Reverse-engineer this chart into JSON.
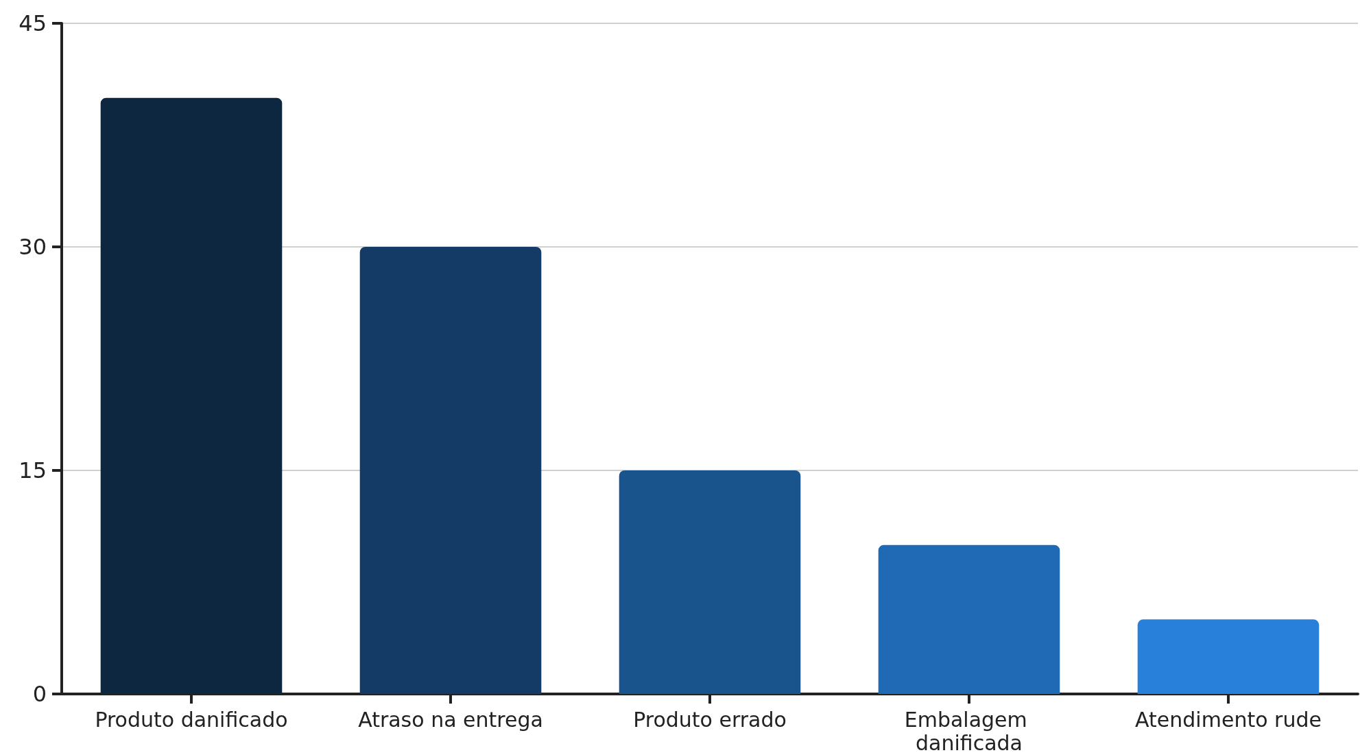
{
  "chart_data": {
    "type": "bar",
    "categories": [
      "Produto danificado",
      "Atraso na entrega",
      "Produto errado",
      "Embalagem danificada",
      "Atendimento rude"
    ],
    "values": [
      40,
      30,
      15,
      10,
      5
    ],
    "colors": [
      "#0d2740",
      "#143b66",
      "#1a548c",
      "#206ab5",
      "#2980da"
    ],
    "ylim": [
      0,
      45
    ],
    "yticks": [
      0,
      15,
      30,
      45
    ],
    "grid": "y"
  }
}
